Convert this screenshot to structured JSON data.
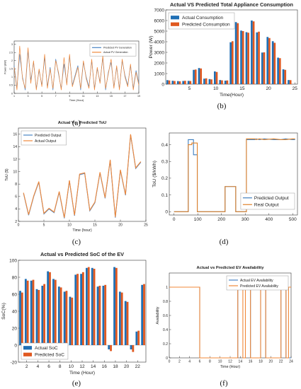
{
  "captions": [
    "(a)",
    "(b)",
    "(c)",
    "(d)",
    "(e)",
    "(f)"
  ],
  "chart_data": [
    {
      "id": "a",
      "type": "line",
      "title": "",
      "xlabel": "Time (Hour)",
      "ylabel": "Power (kW)",
      "x": [
        1,
        1.4,
        1.8,
        2.2,
        2.6,
        3,
        3.4,
        3.8,
        4.2,
        4.6,
        5,
        5.4,
        5.8,
        6.2,
        6.6,
        7,
        7.4,
        7.8,
        8.2,
        8.6,
        9,
        9.4,
        9.8,
        10.2,
        10.6,
        11,
        11.4,
        11.8,
        12.2,
        12.6,
        13,
        13.4,
        13.8,
        14.2,
        14.6,
        15,
        15.4,
        15.8,
        16.2,
        16.6,
        17,
        17.4,
        17.8,
        18.2,
        18.6,
        19
      ],
      "xticks": [
        1,
        3,
        5,
        7,
        9,
        11,
        13,
        15,
        17,
        19
      ],
      "ylim": [
        0,
        3.2
      ],
      "yticks": [
        0,
        0.5,
        1,
        1.5,
        2,
        2.5,
        3
      ],
      "legend_position": "top-right",
      "series": [
        {
          "name": "Predicted PV Generation",
          "color": "#4a84c4",
          "values": [
            1.7,
            0.3,
            2.4,
            1.0,
            0.2,
            2.6,
            0.8,
            1.9,
            0.3,
            1.4,
            0.5,
            2.2,
            0.4,
            1.6,
            0.2,
            2.1,
            1.2,
            0.3,
            1.8,
            0.6,
            2.3,
            0.5,
            1.1,
            1.7,
            0.2,
            1.9,
            1.0,
            0.4,
            2.0,
            0.3,
            1.5,
            0.7,
            2.2,
            0.2,
            1.3,
            1.9,
            0.4,
            1.6,
            0.3,
            2.0,
            1.1,
            0.5,
            1.7,
            0.3,
            1.4,
            0.6
          ]
        },
        {
          "name": "Actual PV Generation",
          "color": "#f0883a",
          "values": [
            1.6,
            0.2,
            2.9,
            0.9,
            0.3,
            2.8,
            0.6,
            2.0,
            0.2,
            1.5,
            0.4,
            2.4,
            0.3,
            1.5,
            0.3,
            2.0,
            1.3,
            0.2,
            2.2,
            0.5,
            2.4,
            0.4,
            1.0,
            1.6,
            0.3,
            2.0,
            0.9,
            0.3,
            2.1,
            0.2,
            1.6,
            0.6,
            2.3,
            0.3,
            1.2,
            2.1,
            0.3,
            1.7,
            0.2,
            2.1,
            1.0,
            0.4,
            1.8,
            0.2,
            1.3,
            0.5
          ]
        }
      ]
    },
    {
      "id": "b",
      "type": "bar",
      "title": "Actual VS Predicted Total Appliance Consumption",
      "xlabel": "Time(Hour)",
      "ylabel": "Power (W)",
      "categories": [
        1,
        2,
        3,
        4,
        5,
        6,
        7,
        8,
        9,
        10,
        11,
        12,
        13,
        14,
        15,
        16,
        17,
        18,
        19,
        20,
        21,
        22,
        23,
        24
      ],
      "xticks": [
        5,
        10,
        15,
        20,
        25
      ],
      "ylim": [
        0,
        7000
      ],
      "yticks": [
        0,
        1000,
        2000,
        3000,
        4000,
        5000,
        6000,
        7000
      ],
      "legend_position": "top-left",
      "series": [
        {
          "name": "Actual Consumption",
          "color": "#1f6fb4",
          "values": [
            380,
            320,
            290,
            300,
            310,
            1350,
            1520,
            520,
            480,
            1200,
            390,
            330,
            3950,
            5850,
            5050,
            4900,
            6000,
            4880,
            2980,
            4450,
            4050,
            2500,
            1400,
            390
          ]
        },
        {
          "name": "Predicted Consumption",
          "color": "#e0581f",
          "values": [
            350,
            300,
            270,
            320,
            300,
            1380,
            1480,
            550,
            450,
            1150,
            360,
            350,
            4050,
            5750,
            5000,
            4850,
            5920,
            4950,
            3000,
            4350,
            3900,
            2450,
            1350,
            380
          ]
        }
      ]
    },
    {
      "id": "c",
      "type": "line",
      "title": "Actual Vs. Predicted ToU",
      "xlabel": "Time (hour)",
      "ylabel": "ToU ($)",
      "x": [
        1,
        2,
        3,
        4,
        5,
        6,
        7,
        8,
        9,
        10,
        11,
        12,
        13,
        14,
        15,
        16,
        17,
        18,
        19,
        20,
        21,
        22,
        23,
        24
      ],
      "xticks": [
        0,
        5,
        10,
        15,
        20,
        25
      ],
      "ylim": [
        2,
        17
      ],
      "yticks": [
        2,
        4,
        6,
        8,
        10,
        12,
        14,
        16
      ],
      "legend_position": "top-left",
      "series": [
        {
          "name": "Predicted Output",
          "color": "#4a84c4",
          "values": [
            6.5,
            3.0,
            6.0,
            8.3,
            3.2,
            4.0,
            3.4,
            6.7,
            2.5,
            8.5,
            2.9,
            9.5,
            9.7,
            3.7,
            5.0,
            9.8,
            5.7,
            11.8,
            2.6,
            10.2,
            6.2,
            15.9,
            10.5,
            11.5
          ]
        },
        {
          "name": "Actual Output",
          "color": "#f0883a",
          "values": [
            6.6,
            3.1,
            6.1,
            8.4,
            3.3,
            4.1,
            3.5,
            6.8,
            2.6,
            8.6,
            3.0,
            9.6,
            9.8,
            3.8,
            5.1,
            9.9,
            5.8,
            11.9,
            2.7,
            10.3,
            6.3,
            16.0,
            10.6,
            11.6
          ]
        }
      ]
    },
    {
      "id": "d",
      "type": "line",
      "title": "",
      "xlabel": "",
      "ylabel": "ToU ($/kWh)",
      "xlim": [
        -20,
        520
      ],
      "xticks": [
        0,
        100,
        200,
        300,
        400,
        500
      ],
      "ylim": [
        -0.02,
        0.47
      ],
      "yticks": [
        0,
        0.1,
        0.2,
        0.3,
        0.4
      ],
      "legend_position": "lower-right",
      "series": [
        {
          "name": "Predicted Output",
          "color": "#3f7fbf",
          "x": [
            0,
            60,
            60,
            75,
            75,
            82,
            82,
            98,
            98,
            215,
            215,
            260,
            260,
            305,
            305,
            340,
            345,
            360,
            380,
            420,
            450,
            470,
            500,
            510
          ],
          "values": [
            0,
            0,
            0.43,
            0.43,
            0.43,
            0.43,
            0.34,
            0.34,
            0,
            0,
            0.15,
            0.15,
            0,
            0,
            0.43,
            0.43,
            0.435,
            0.43,
            0.435,
            0.43,
            0.43,
            0.435,
            0.43,
            0.43
          ]
        },
        {
          "name": "Real Output",
          "color": "#e0822a",
          "x": [
            0,
            60,
            60,
            75,
            75,
            82,
            82,
            98,
            98,
            215,
            215,
            260,
            260,
            305,
            305,
            340,
            345,
            360,
            380,
            420,
            450,
            470,
            500,
            510
          ],
          "values": [
            0,
            0,
            0.4,
            0.4,
            0.41,
            0.41,
            0.41,
            0.41,
            0,
            0,
            0.15,
            0.15,
            0,
            0,
            0.435,
            0.435,
            0.43,
            0.435,
            0.43,
            0.435,
            0.43,
            0.43,
            0.435,
            0.435
          ]
        }
      ]
    },
    {
      "id": "e",
      "type": "bar",
      "title": "Actual vs Predicted SoC of the EV",
      "xlabel": "Time (Hour)",
      "ylabel": "SoC(%)",
      "categories": [
        1,
        2,
        3,
        4,
        5,
        6,
        7,
        8,
        9,
        10,
        11,
        12,
        13,
        14,
        15,
        16,
        17,
        18,
        19,
        20,
        21,
        22,
        23
      ],
      "xticks": [
        2,
        4,
        6,
        8,
        10,
        12,
        14,
        16,
        18,
        20,
        22
      ],
      "ylim": [
        -20,
        100
      ],
      "yticks": [
        -20,
        0,
        20,
        40,
        60,
        80,
        100
      ],
      "legend_position": "bottom-left",
      "series": [
        {
          "name": "Actual SoC",
          "color": "#1f6fb4",
          "values": [
            64,
            78,
            76,
            66,
            70,
            87,
            78,
            69,
            63,
            57,
            83,
            84,
            91,
            91,
            69,
            70,
            -5,
            92,
            63,
            52,
            -5,
            16,
            71
          ]
        },
        {
          "name": "Predicted SoC",
          "color": "#e0581f",
          "values": [
            62,
            76,
            77,
            65,
            72,
            86,
            77,
            68,
            64,
            56,
            84,
            86,
            92,
            90,
            70,
            71,
            -7,
            91,
            62,
            51,
            -8,
            17,
            72
          ]
        }
      ]
    },
    {
      "id": "f",
      "type": "line",
      "title": "Actual vs Predicted EV Availability",
      "xlabel": "Time (Hour)",
      "ylabel": "Availability",
      "xlim": [
        0,
        24
      ],
      "xticks": [
        0,
        2,
        4,
        6,
        8,
        10,
        12,
        14,
        16,
        18,
        20,
        22,
        24
      ],
      "ylim": [
        0,
        1.2
      ],
      "yticks": [
        0,
        0.2,
        0.4,
        0.6,
        0.8,
        1
      ],
      "legend_position": "top-right",
      "series": [
        {
          "name": "Actual EV Availability",
          "color": "#4a84c4",
          "x": [
            0,
            6,
            6,
            13.5,
            13.5,
            14.5,
            14.5,
            15,
            15,
            16,
            16,
            18,
            18,
            19,
            19,
            22,
            22,
            23,
            23,
            24
          ],
          "values": [
            1,
            1,
            0,
            0,
            1,
            1,
            1,
            1,
            1,
            1,
            0,
            0,
            1,
            1,
            0,
            0,
            1,
            1,
            0,
            0
          ]
        },
        {
          "name": "Predicted EV Availability",
          "color": "#f0883a",
          "x": [
            0,
            6,
            6,
            13.5,
            13.5,
            14.5,
            14.5,
            15,
            15,
            16,
            16,
            18,
            18,
            19,
            19,
            22,
            22,
            23,
            23,
            23.5,
            23.5,
            24
          ],
          "values": [
            1,
            1,
            0,
            0,
            1,
            1,
            0,
            0,
            1,
            1,
            0,
            0,
            1,
            1,
            0,
            0,
            1,
            1,
            0,
            0,
            1,
            1
          ]
        }
      ]
    }
  ]
}
